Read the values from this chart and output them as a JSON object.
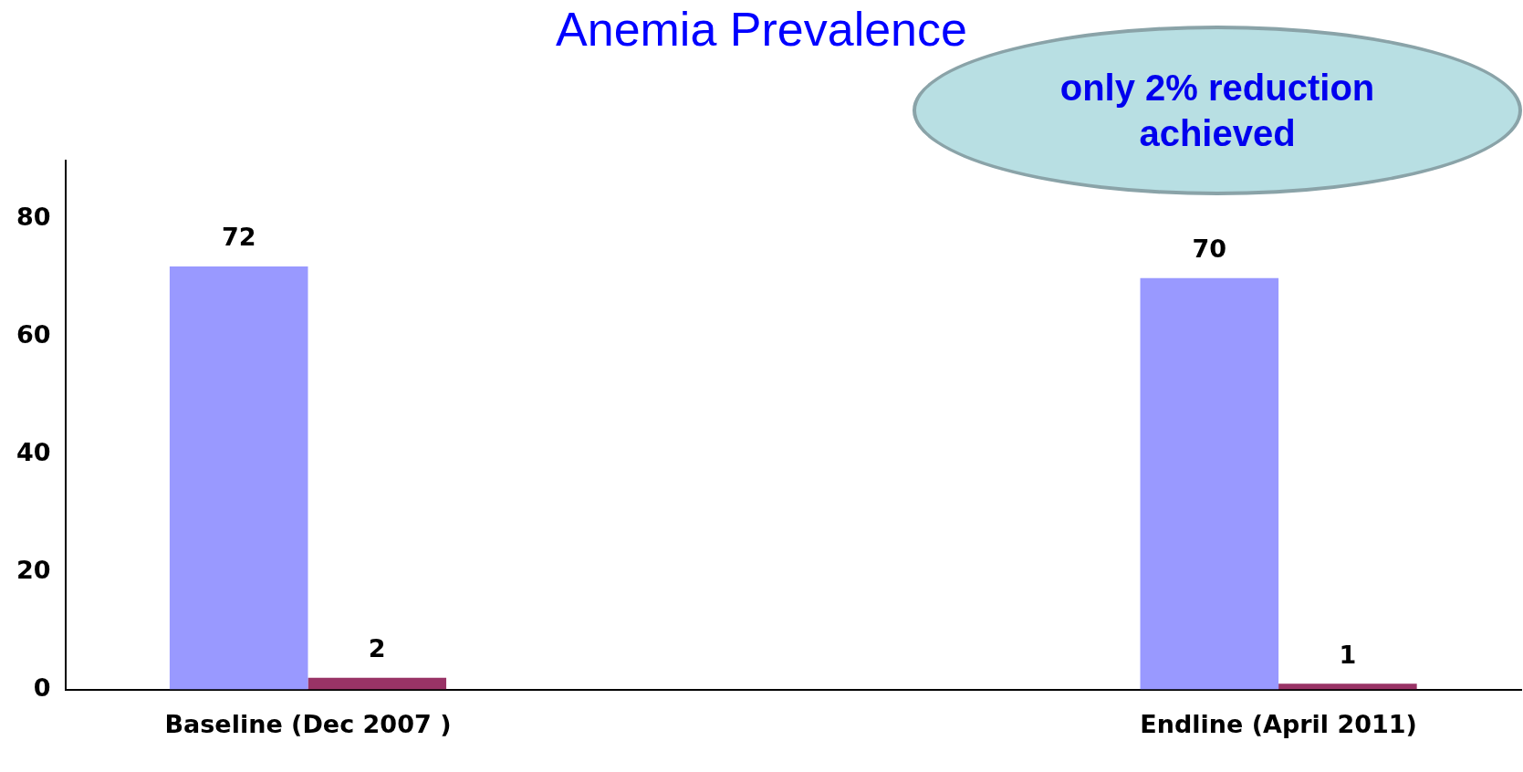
{
  "chart_data": {
    "type": "bar",
    "title": "Anemia Prevalence",
    "categories": [
      "Baseline (Dec 2007 )",
      null,
      "Endline (April 2011)"
    ],
    "series": [
      {
        "color": "#9999ff",
        "values": [
          72,
          0,
          70
        ],
        "value_labels": [
          "72",
          null,
          "70"
        ]
      },
      {
        "color": "#993366",
        "values": [
          2,
          0,
          1
        ],
        "value_labels": [
          "2",
          null,
          "1"
        ]
      }
    ],
    "ylim": [
      0,
      90
    ],
    "yticks": [
      0,
      20,
      40,
      60,
      80
    ],
    "grid": false,
    "legend": false,
    "annotations": [
      "only 2% reduction achieved"
    ]
  }
}
